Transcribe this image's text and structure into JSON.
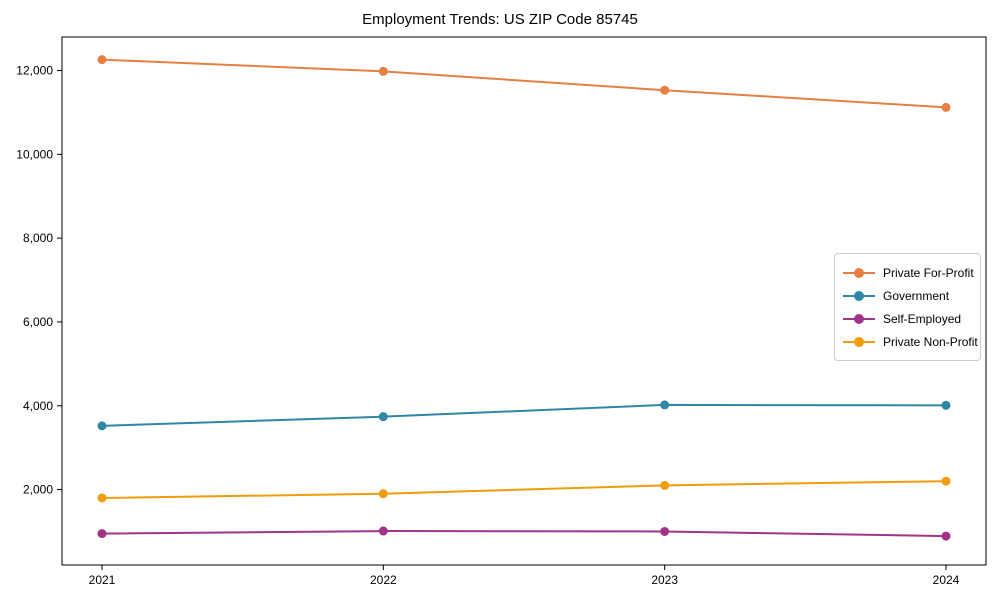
{
  "chart_data": {
    "type": "line",
    "title": "Employment Trends: US ZIP Code 85745",
    "x": [
      "2021",
      "2022",
      "2023",
      "2024"
    ],
    "series": [
      {
        "name": "Private For-Profit",
        "color": "#e67f41",
        "values": [
          12260,
          11980,
          11530,
          11120
        ]
      },
      {
        "name": "Government",
        "color": "#2e87a5",
        "values": [
          3520,
          3740,
          4020,
          4010
        ]
      },
      {
        "name": "Self-Employed",
        "color": "#a03487",
        "values": [
          950,
          1010,
          1000,
          890
        ]
      },
      {
        "name": "Private Non-Profit",
        "color": "#f09c0d",
        "values": [
          1800,
          1900,
          2100,
          2200
        ]
      }
    ],
    "xlabel": "",
    "ylabel": "",
    "ylim": [
      200,
      12800
    ],
    "yticks": [
      2000,
      4000,
      6000,
      8000,
      10000,
      12000
    ],
    "ytick_labels": [
      "2,000",
      "4,000",
      "6,000",
      "8,000",
      "10,000",
      "12,000"
    ],
    "grid": false,
    "legend_position": "right-center",
    "axis_color": "#000000",
    "background_color": "#ffffff"
  }
}
